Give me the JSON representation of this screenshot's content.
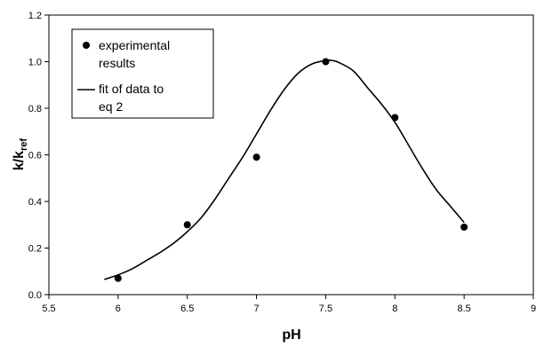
{
  "chart_data": {
    "type": "scatter",
    "xlabel": "pH",
    "ylabel": {
      "main": "k/k",
      "sub": "ref"
    },
    "xlim": [
      5.5,
      9
    ],
    "ylim": [
      0,
      1.2
    ],
    "x_ticks": [
      "5.5",
      "6",
      "6.5",
      "7",
      "7.5",
      "8",
      "8.5",
      "9"
    ],
    "y_ticks": [
      "0.0",
      "0.2",
      "0.4",
      "0.6",
      "0.8",
      "1.0",
      "1.2"
    ],
    "grid": false,
    "legend_position": "top-left",
    "series": [
      {
        "name_lines": [
          "experimental",
          "results"
        ],
        "kind": "points",
        "color": "#000000",
        "x": [
          6,
          6.5,
          7,
          7.5,
          8,
          8.5
        ],
        "y": [
          0.07,
          0.3,
          0.59,
          1.0,
          0.76,
          0.29
        ]
      },
      {
        "name_lines": [
          "fit of data to",
          "eq 2"
        ],
        "kind": "line",
        "color": "#000000",
        "x": [
          5.9,
          6.0,
          6.1,
          6.2,
          6.3,
          6.4,
          6.5,
          6.6,
          6.7,
          6.8,
          6.9,
          7.0,
          7.1,
          7.2,
          7.3,
          7.4,
          7.5,
          7.55,
          7.6,
          7.7,
          7.8,
          7.9,
          8.0,
          8.1,
          8.2,
          8.3,
          8.4,
          8.5
        ],
        "y": [
          0.065,
          0.085,
          0.11,
          0.145,
          0.18,
          0.22,
          0.27,
          0.33,
          0.41,
          0.5,
          0.59,
          0.69,
          0.79,
          0.88,
          0.95,
          0.99,
          1.005,
          1.005,
          0.995,
          0.96,
          0.89,
          0.82,
          0.74,
          0.64,
          0.54,
          0.45,
          0.38,
          0.31
        ]
      }
    ]
  }
}
